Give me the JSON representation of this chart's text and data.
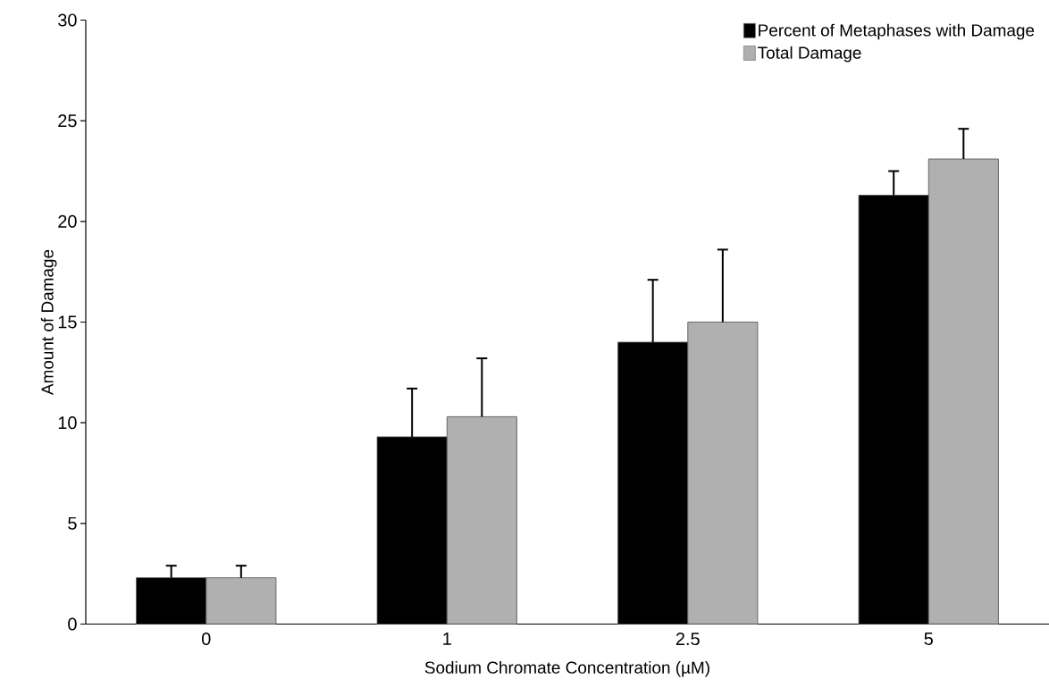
{
  "chart_data": {
    "type": "bar",
    "xlabel": "Sodium Chromate Concentration (µM)",
    "ylabel": "Amount of Damage",
    "categories": [
      "0",
      "1",
      "2.5",
      "5"
    ],
    "series": [
      {
        "name": "Percent of Metaphases with Damage",
        "color": "#000000",
        "values": [
          2.3,
          9.3,
          14.0,
          21.3
        ],
        "errors": [
          [
            2.3,
            2.9
          ],
          [
            9.3,
            11.7
          ],
          [
            14.0,
            17.1
          ],
          [
            21.3,
            22.5
          ]
        ]
      },
      {
        "name": "Total Damage",
        "color": "#b0b0b0",
        "values": [
          2.3,
          10.3,
          15.0,
          23.1
        ],
        "errors": [
          [
            2.3,
            2.9
          ],
          [
            10.3,
            13.2
          ],
          [
            15.0,
            18.6
          ],
          [
            23.1,
            24.6
          ]
        ]
      }
    ],
    "ylim": [
      0,
      30
    ],
    "yticks": [
      0,
      5,
      10,
      15,
      20,
      25,
      30
    ],
    "legend": "top right"
  }
}
